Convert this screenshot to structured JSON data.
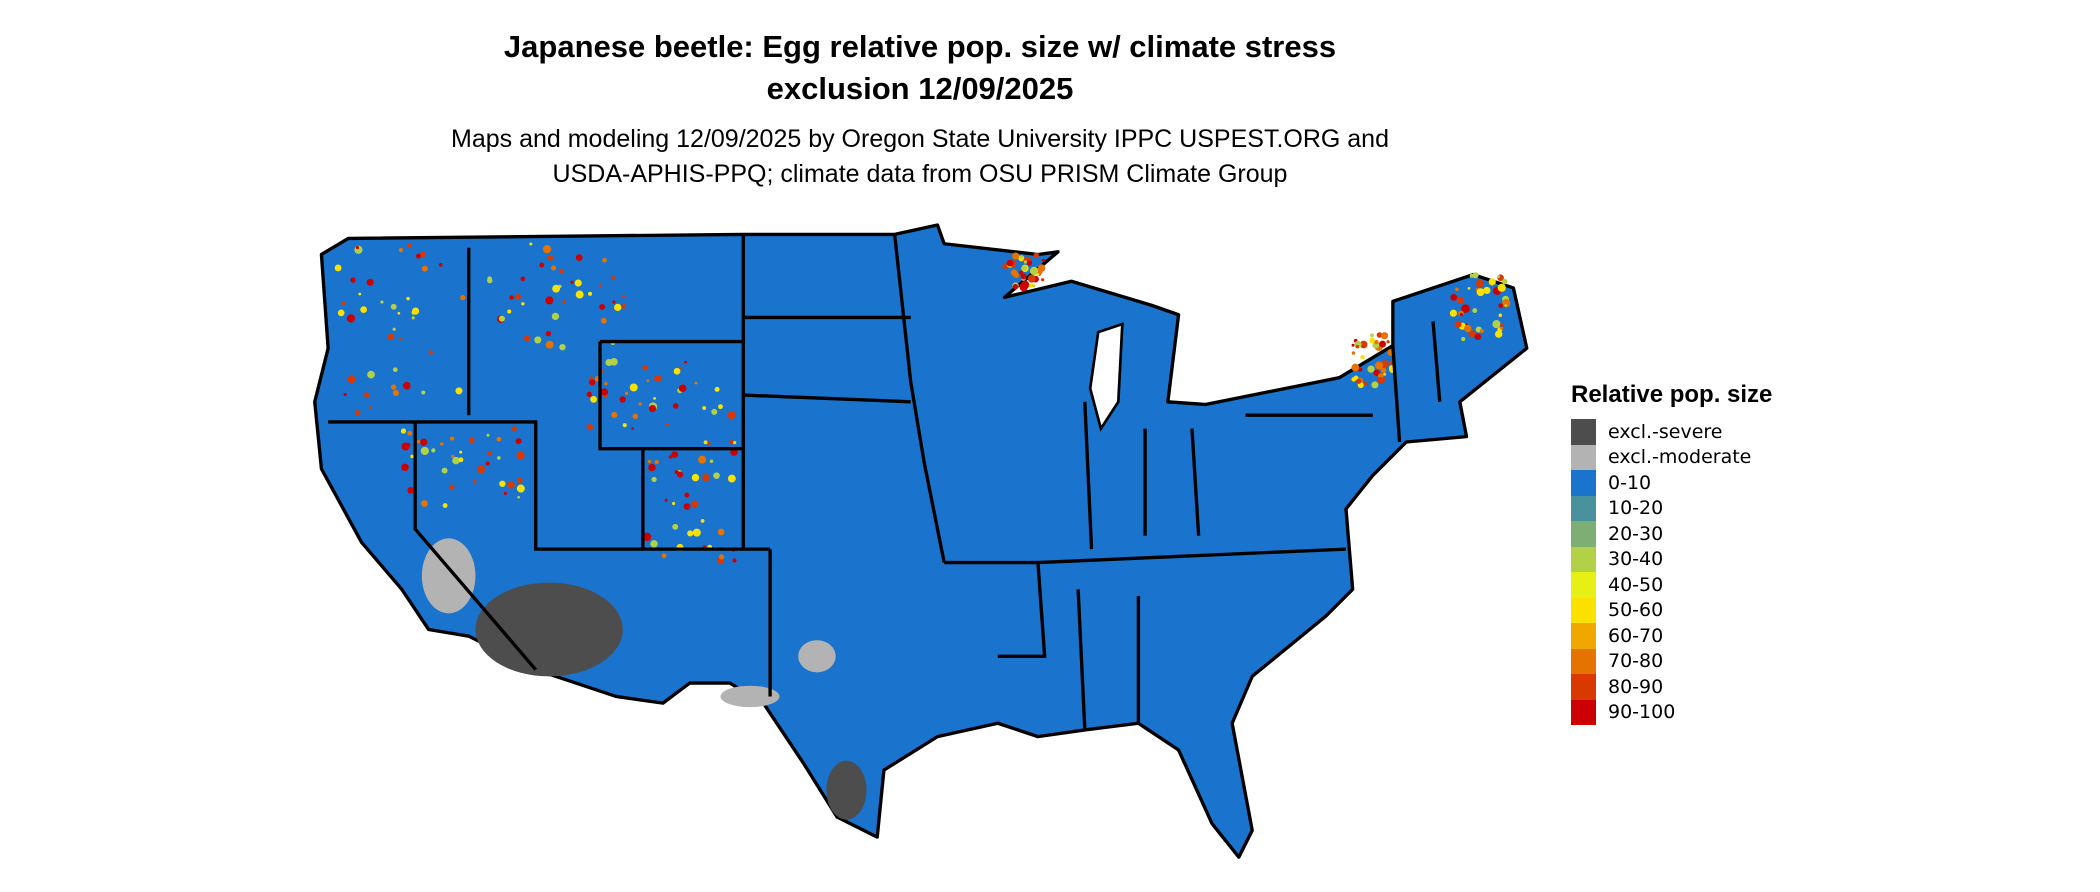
{
  "title": [
    "Japanese beetle: Egg relative pop. size w/ climate stress",
    "exclusion 12/09/2025"
  ],
  "subtitle": [
    "Maps and modeling 12/09/2025 by Oregon State University IPPC USPEST.ORG and",
    "USDA-APHIS-PPQ; climate data from OSU PRISM Climate Group"
  ],
  "legend": {
    "title": "Relative pop. size",
    "items": [
      {
        "label": "excl.-severe",
        "color": "#4d4d4d"
      },
      {
        "label": "excl.-moderate",
        "color": "#b3b3b3"
      },
      {
        "label": "0-10",
        "color": "#1a73cc"
      },
      {
        "label": "10-20",
        "color": "#4a919e"
      },
      {
        "label": "20-30",
        "color": "#7dae74"
      },
      {
        "label": "30-40",
        "color": "#b3d147"
      },
      {
        "label": "40-50",
        "color": "#e6f014"
      },
      {
        "label": "50-60",
        "color": "#fae100"
      },
      {
        "label": "60-70",
        "color": "#f0a800"
      },
      {
        "label": "70-80",
        "color": "#e67300"
      },
      {
        "label": "80-90",
        "color": "#d93800"
      },
      {
        "label": "90-100",
        "color": "#cc0000"
      }
    ]
  },
  "map": {
    "region": "Contiguous United States",
    "base_color": "#1a73cc",
    "border_color": "#000000"
  }
}
